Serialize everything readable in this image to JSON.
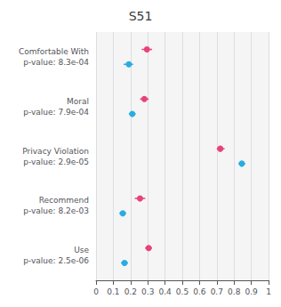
{
  "chart_data": {
    "type": "dotplot",
    "title": "S51",
    "orientation": "horizontal",
    "categories": [
      "Comfortable With\np-value: 8.3e-04",
      "Moral\np-value: 7.9e-04",
      "Privacy Violation\np-value: 2.9e-05",
      "Recommend\np-value: 8.2e-03",
      "Use\np-value: 2.5e-06"
    ],
    "series": [
      {
        "color": "#E8427A",
        "marker": "circle",
        "values": [
          0.295,
          0.28,
          0.72,
          0.255,
          0.305
        ],
        "lo": [
          0.265,
          0.255,
          0.7,
          0.225,
          0.285
        ],
        "hi": [
          0.325,
          0.305,
          0.745,
          0.285,
          0.325
        ]
      },
      {
        "color": "#2AACE2",
        "marker": "circle",
        "values": [
          0.19,
          0.21,
          0.845,
          0.155,
          0.165
        ],
        "lo": [
          0.16,
          0.19,
          0.825,
          0.135,
          0.145
        ],
        "hi": [
          0.215,
          0.23,
          0.865,
          0.175,
          0.185
        ]
      }
    ],
    "xlim": [
      0,
      1
    ],
    "xticks": [
      0,
      0.1,
      0.2,
      0.3,
      0.4,
      0.5,
      0.6,
      0.7,
      0.8,
      0.9,
      1
    ],
    "grid": true
  }
}
